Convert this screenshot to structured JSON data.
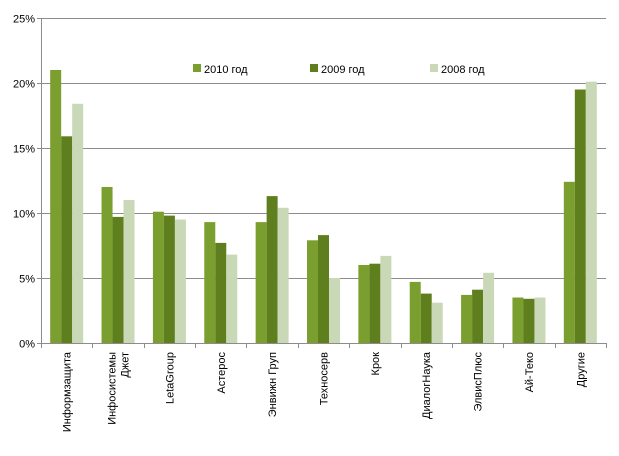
{
  "chart_data": {
    "type": "bar",
    "categories": [
      "Информзащита",
      "Инфосистемы Джет",
      "LetaGroup",
      "Астерос",
      "Энвижн Груп",
      "Техносерв",
      "Крок",
      "ДиалогНаука",
      "ЭлвисПлюс",
      "Ай-Теко",
      "Другие"
    ],
    "category_lines": [
      [
        "Информзащита"
      ],
      [
        "Инфосистемы",
        "Джет"
      ],
      [
        "LetaGroup"
      ],
      [
        "Астерос"
      ],
      [
        "Энвижн Груп"
      ],
      [
        "Техносерв"
      ],
      [
        "Крок"
      ],
      [
        "ДиалогНаука"
      ],
      [
        "ЭлвисПлюс"
      ],
      [
        "Ай-Теко"
      ],
      [
        "Другие"
      ]
    ],
    "series": [
      {
        "name": "2010 год",
        "color": "#7a9f2e",
        "values": [
          21.0,
          12.0,
          10.1,
          9.3,
          9.3,
          7.9,
          6.0,
          4.7,
          3.7,
          3.5,
          12.4
        ]
      },
      {
        "name": "2009 год",
        "color": "#5f7f1f",
        "values": [
          15.9,
          9.7,
          9.8,
          7.7,
          11.3,
          8.3,
          6.1,
          3.8,
          4.1,
          3.4,
          19.5
        ]
      },
      {
        "name": "2008 год",
        "color": "#c9d8b6",
        "values": [
          18.4,
          11.0,
          9.5,
          6.8,
          10.4,
          5.0,
          6.7,
          3.1,
          5.4,
          3.5,
          20.1
        ]
      }
    ],
    "ylim": [
      0,
      25
    ],
    "yticks": [
      0,
      5,
      10,
      15,
      20,
      25
    ],
    "ytick_labels": [
      "0%",
      "5%",
      "10%",
      "15%",
      "20%",
      "25%"
    ],
    "grid": true,
    "legend_position": "top-center"
  }
}
